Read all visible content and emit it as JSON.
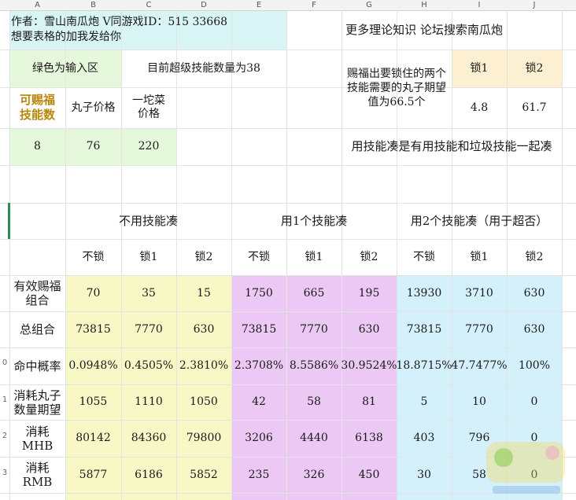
{
  "columns": [
    "A",
    "B",
    "C",
    "D",
    "E",
    "F",
    "G",
    "H",
    "I",
    "J"
  ],
  "rows": [
    "0",
    "1",
    "2",
    "3"
  ],
  "author_line": "作者：雪山南瓜炮 V同游戏ID：515 33668",
  "share_line": "想要表格的加我发给你",
  "forum_link": "更多理论知识 论坛搜索南瓜炮",
  "green_note": "绿色为输入区",
  "super_skill_count": "目前超级技能数量为38",
  "lock_expect_text": "赐福出要锁住的两个技能需要的丸子期望值为66.5个",
  "lock1_label": "锁1",
  "lock2_label": "锁2",
  "lock1_value": "4.8",
  "lock2_value": "61.7",
  "input_headers": {
    "skills": "可赐福技能数",
    "pill_price": "丸子价格",
    "dish_price": "一坨菜价格"
  },
  "input_values": {
    "skills": "8",
    "pill_price": "76",
    "dish_price": "220"
  },
  "combine_note": "用技能凑是有用技能和垃圾技能一起凑",
  "groups": [
    "不用技能凑",
    "用1个技能凑",
    "用2个技能凑（用于超否）"
  ],
  "sub_headers": [
    "不锁",
    "锁1",
    "锁2",
    "不锁",
    "锁1",
    "锁2",
    "不锁",
    "锁1",
    "锁2"
  ],
  "table_rows": [
    {
      "label": "有效赐福组合",
      "values": [
        "70",
        "35",
        "15",
        "1750",
        "665",
        "195",
        "13930",
        "3710",
        "630"
      ]
    },
    {
      "label": "总组合",
      "values": [
        "73815",
        "7770",
        "630",
        "73815",
        "7770",
        "630",
        "73815",
        "7770",
        "630"
      ]
    },
    {
      "label": "命中概率",
      "values": [
        "0.0948%",
        "0.4505%",
        "2.3810%",
        "2.3708%",
        "8.5586%",
        "30.9524%",
        "18.8715%",
        "47.7477%",
        "100%"
      ]
    },
    {
      "label": "消耗丸子数量期望",
      "values": [
        "1055",
        "1110",
        "1050",
        "42",
        "58",
        "81",
        "5",
        "10",
        "0"
      ]
    },
    {
      "label": "消耗MHB",
      "values": [
        "80142",
        "84360",
        "79800",
        "3206",
        "4440",
        "6138",
        "403",
        "796",
        "0"
      ]
    },
    {
      "label": "消耗RMB",
      "values": [
        "5877",
        "6186",
        "5852",
        "235",
        "326",
        "450",
        "30",
        "58",
        "0"
      ]
    }
  ],
  "colors": {
    "cyan": "#d8f4f4",
    "light_green": "#e6f8dc",
    "peach": "#fdf0d2",
    "yellow_group": "#f7f8c6",
    "purple_group": "#ecc8f5",
    "blue_group": "#d4f1fb",
    "gold_text": "#b8860b"
  }
}
